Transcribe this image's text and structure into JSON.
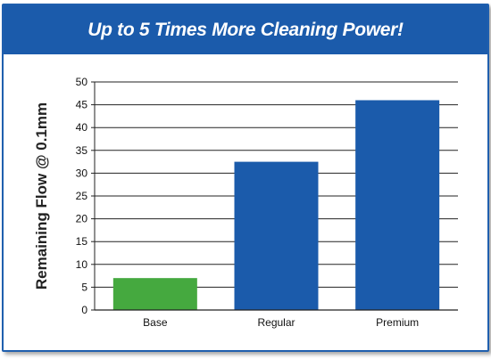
{
  "chart_data": {
    "type": "bar",
    "title": "Up to 5 Times More Cleaning Power!",
    "ylabel": "Remaining Flow @ 0.1mm",
    "xlabel": "",
    "categories": [
      "Base",
      "Regular",
      "Premium"
    ],
    "values": [
      7,
      32.5,
      46
    ],
    "bar_colors": [
      "#45a93f",
      "#1b5bab",
      "#1b5bab"
    ],
    "ylim": [
      0,
      50
    ],
    "yticks": [
      "0",
      "5",
      "10",
      "15",
      "20",
      "25",
      "30",
      "35",
      "40",
      "45",
      "50"
    ],
    "grid": true,
    "legend": "none"
  },
  "colors": {
    "header": "#1b5bab",
    "frame": "#1f5fae"
  }
}
